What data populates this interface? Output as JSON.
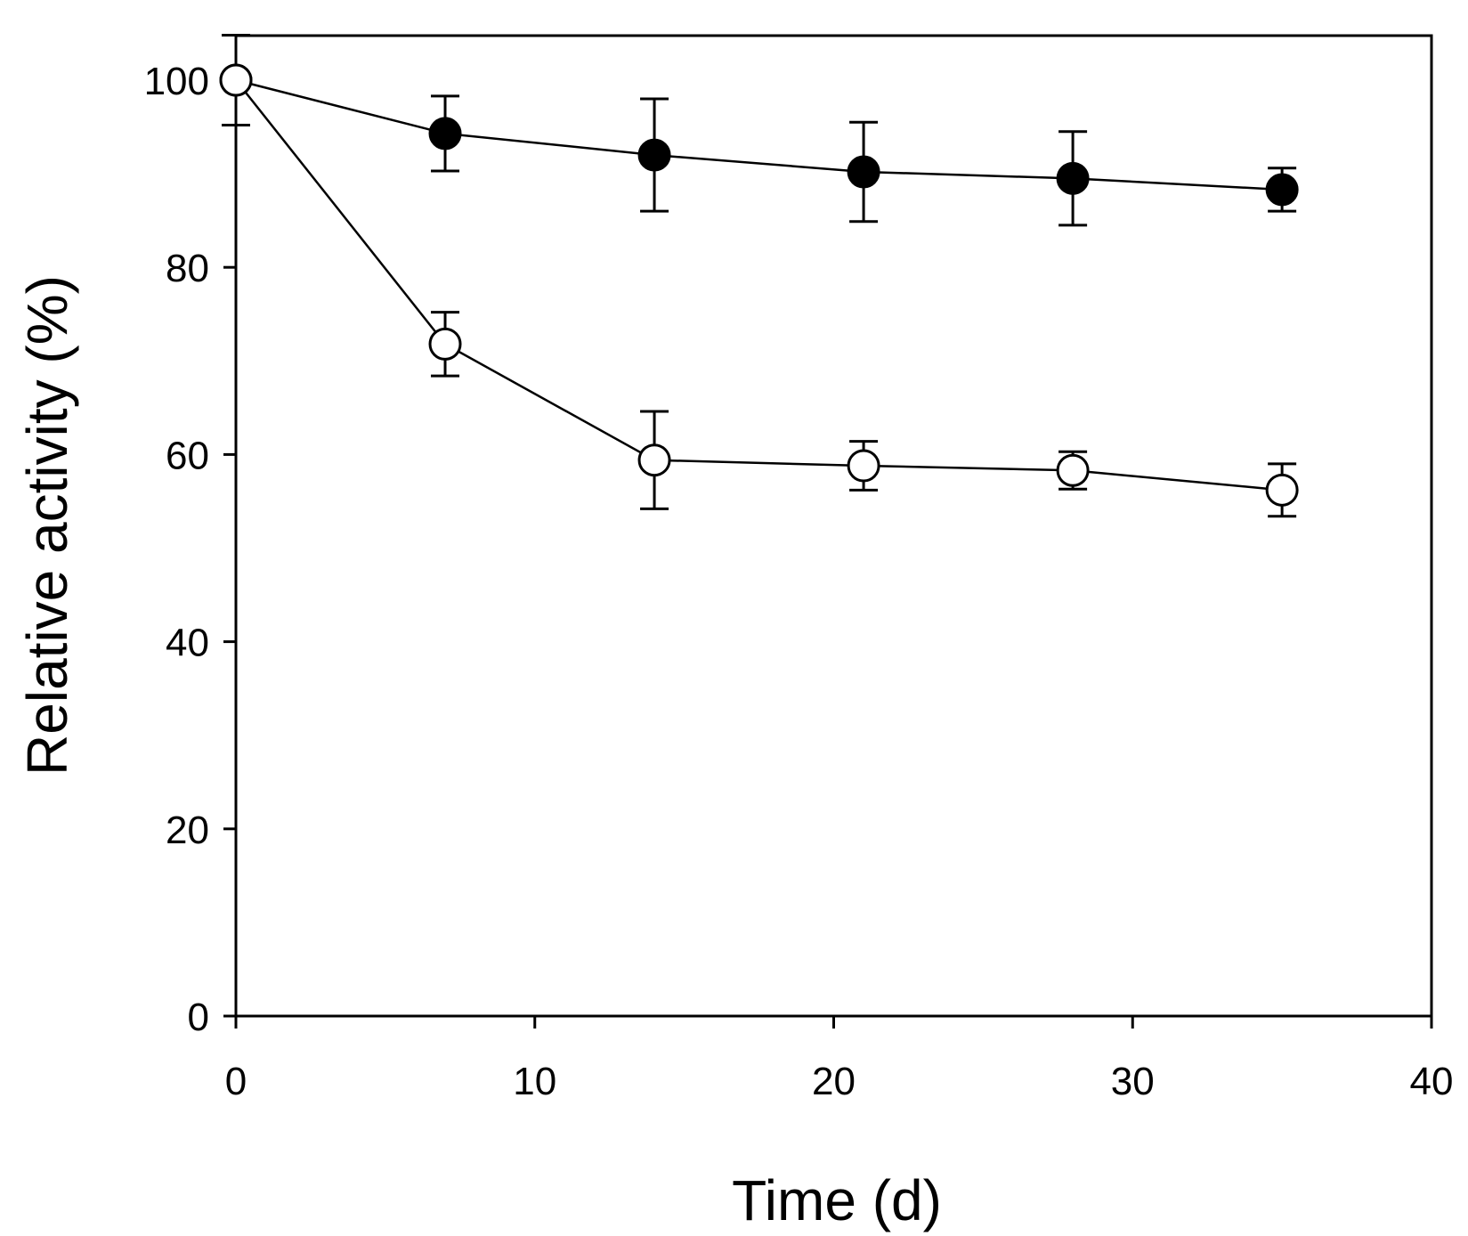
{
  "chart_data": {
    "type": "line",
    "title": "",
    "xlabel": "Time (d)",
    "ylabel": "Relative activity (%)",
    "xlim": [
      0,
      40
    ],
    "ylim": [
      0,
      100
    ],
    "xticks": [
      0,
      10,
      20,
      30,
      40
    ],
    "yticks": [
      0,
      20,
      40,
      60,
      80,
      100
    ],
    "grid": false,
    "legend": null,
    "series": [
      {
        "name": "filled circles",
        "marker": "filled-circle",
        "color": "#000000",
        "x": [
          0,
          7,
          14,
          21,
          28,
          35
        ],
        "y": [
          100,
          94.3,
          92.0,
          90.2,
          89.5,
          88.3
        ],
        "err": [
          4.8,
          4.0,
          6.0,
          5.3,
          5.0,
          2.3
        ]
      },
      {
        "name": "open circles",
        "marker": "open-circle",
        "color": "#000000",
        "x": [
          0,
          7,
          14,
          21,
          28,
          35
        ],
        "y": [
          100,
          71.8,
          59.4,
          58.8,
          58.3,
          56.2
        ],
        "err": [
          0,
          3.4,
          5.2,
          2.6,
          2.0,
          2.8
        ]
      }
    ]
  }
}
